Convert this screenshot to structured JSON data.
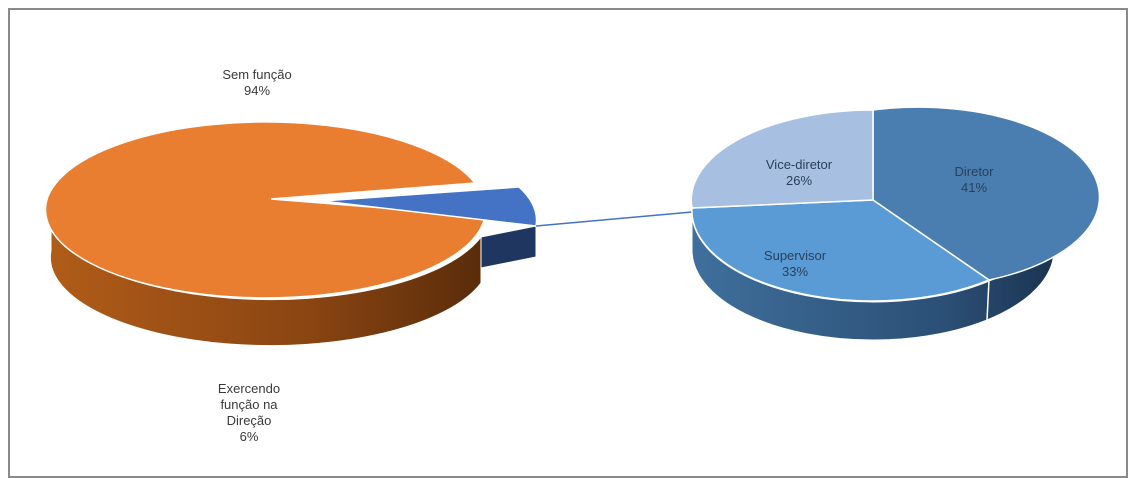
{
  "chart_data": [
    {
      "type": "pie",
      "style": "3d-bar-of-pie",
      "slices": [
        {
          "label": "Sem função",
          "value": 94,
          "display": "94%",
          "color": "#EA7E30"
        },
        {
          "label": "Exercendo função na Direção",
          "value": 6,
          "display": "6%",
          "color": "#4472C4",
          "label_lines": [
            "Exercendo",
            "função na",
            "Direção"
          ]
        }
      ]
    },
    {
      "type": "pie",
      "style": "3d",
      "slices": [
        {
          "label": "Diretor",
          "value": 41,
          "display": "41%",
          "color": "#4A7EB0"
        },
        {
          "label": "Supervisor",
          "value": 33,
          "display": "33%",
          "color": "#5B9BD5"
        },
        {
          "label": "Vice-diretor",
          "value": 26,
          "display": "26%",
          "color": "#A7C0E1"
        }
      ]
    }
  ]
}
